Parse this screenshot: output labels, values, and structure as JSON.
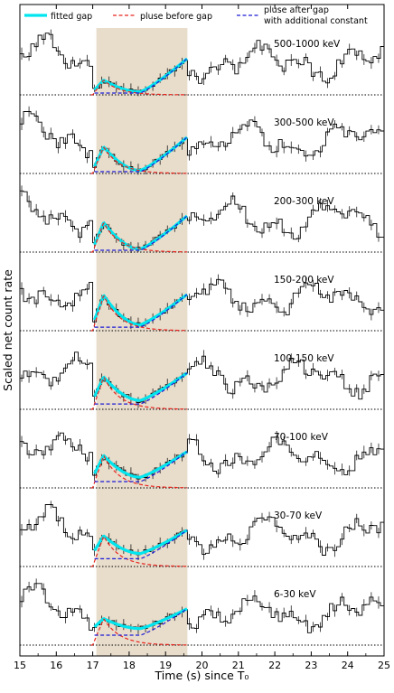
{
  "chart_data": {
    "type": "line",
    "xlabel": "Time (s) since T₀",
    "ylabel": "Scaled net count rate",
    "xlim": [
      15,
      25
    ],
    "x_ticks": [
      15,
      16,
      17,
      18,
      19,
      20,
      21,
      22,
      23,
      24,
      25
    ],
    "x_tick_labels": [
      "15",
      "16",
      "17",
      "18",
      "19",
      "20",
      "21",
      "22",
      "23",
      "24",
      "25"
    ],
    "shaded_region": {
      "x": [
        17.1,
        19.6
      ],
      "color": "#e8dccb"
    },
    "legend": {
      "placement": "top",
      "entries": [
        {
          "key": "fit",
          "label": "fitted gap",
          "color": "#00e5ee",
          "style": "solid"
        },
        {
          "key": "before",
          "label": "pluse before gap",
          "color": "#e8251e",
          "style": "dashed"
        },
        {
          "key": "after",
          "label": "pluse after gap",
          "label2": "with additional constant",
          "color": "#1a1ad6",
          "style": "dashed"
        }
      ]
    },
    "panels": [
      {
        "label": "500-1000 keV",
        "peak": 0.25,
        "dip": 0.05,
        "seed": 11
      },
      {
        "label": "300-500 keV",
        "peak": 0.45,
        "dip": 0.05,
        "seed": 23
      },
      {
        "label": "200-300 keV",
        "peak": 0.5,
        "dip": 0.05,
        "seed": 37
      },
      {
        "label": "150-200 keV",
        "peak": 0.6,
        "dip": 0.1,
        "seed": 41
      },
      {
        "label": "100-150 keV",
        "peak": 0.55,
        "dip": 0.15,
        "seed": 53
      },
      {
        "label": "70-100 keV",
        "peak": 0.55,
        "dip": 0.18,
        "seed": 67
      },
      {
        "label": "30-70 keV",
        "peak": 0.52,
        "dip": 0.22,
        "seed": 79
      },
      {
        "label": "6-30 keV",
        "peak": 0.45,
        "dip": 0.28,
        "seed": 97
      }
    ]
  }
}
